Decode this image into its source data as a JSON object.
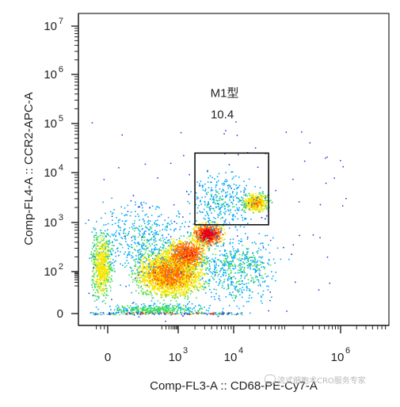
{
  "chart_data": {
    "type": "scatter",
    "subtype": "flow-cytometry-density-plot",
    "xlabel": "Comp-FL3-A :: CD68-PE-Cy7-A",
    "ylabel": "Comp-FL4-A :: CCR2-APC-A",
    "x_scale": "biexponential",
    "y_scale": "biexponential",
    "x_ticks": [
      {
        "value": 0,
        "base": "0",
        "exp": ""
      },
      {
        "value": 1000,
        "base": "10",
        "exp": "3"
      },
      {
        "value": 10000,
        "base": "10",
        "exp": "4"
      },
      {
        "value": 1000000,
        "base": "10",
        "exp": "6"
      }
    ],
    "y_ticks": [
      {
        "value": 0,
        "base": "0",
        "exp": ""
      },
      {
        "value": 100,
        "base": "10",
        "exp": "2"
      },
      {
        "value": 1000,
        "base": "10",
        "exp": "3"
      },
      {
        "value": 10000,
        "base": "10",
        "exp": "4"
      },
      {
        "value": 100000,
        "base": "10",
        "exp": "5"
      },
      {
        "value": 1000000,
        "base": "10",
        "exp": "6"
      },
      {
        "value": 10000000,
        "base": "10",
        "exp": "7"
      }
    ],
    "gate": {
      "name": "M1型",
      "value": "10.4",
      "x_range": [
        2000,
        45000
      ],
      "y_range": [
        900,
        25000
      ]
    },
    "populations": [
      {
        "x": 600,
        "y": 250
      },
      {
        "x": 2300,
        "y": 650
      },
      {
        "x": 18000,
        "y": 2200
      },
      {
        "x": -150,
        "y": 200
      }
    ],
    "grid": false,
    "legend": "none",
    "colormap": [
      "#1f2fd0",
      "#00a8ff",
      "#3fdc55",
      "#f3e600",
      "#ff6a00",
      "#e0001a"
    ]
  },
  "watermark": {
    "text": "流式细胞术CRO服务专家"
  }
}
